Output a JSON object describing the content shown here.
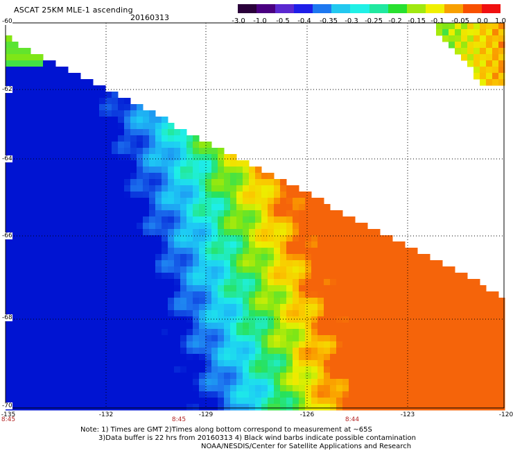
{
  "header": {
    "title": "ASCAT 25KM MLE-1 ascending",
    "date": "20160313"
  },
  "colorbar": {
    "colors": [
      "#2a003a",
      "#4a0080",
      "#5a28d0",
      "#1e1ee8",
      "#1e78f0",
      "#22c8ef",
      "#20f0e6",
      "#20e8a0",
      "#28e030",
      "#a0e810",
      "#f0f000",
      "#f8a000",
      "#f85000",
      "#f01010"
    ],
    "labels": [
      "-3.0",
      "-1.0",
      "-0.5",
      "-0.4",
      "-0.35",
      "-0.3",
      "-0.25",
      "-0.2",
      "-0.15",
      "-0.1",
      "-0.05",
      "0.0",
      "1.0"
    ]
  },
  "axes": {
    "lat_labels": [
      "-60",
      "-62",
      "-64",
      "-66",
      "-68",
      "-70"
    ],
    "lon_labels": [
      "-135",
      "-132",
      "-129",
      "-126",
      "-123",
      "-120"
    ]
  },
  "time_labels": [
    "8:45",
    "8:45",
    "8:44"
  ],
  "notes": [
    "Note: 1) Times are GMT 2)Times along bottom correspond to measurement at ~65S",
    "3)Data buffer is 22 hrs from 20160313 4) Black wind barbs indicate possible contamination",
    "NOAA/NESDIS/Center for Satellite Applications and Research"
  ]
}
